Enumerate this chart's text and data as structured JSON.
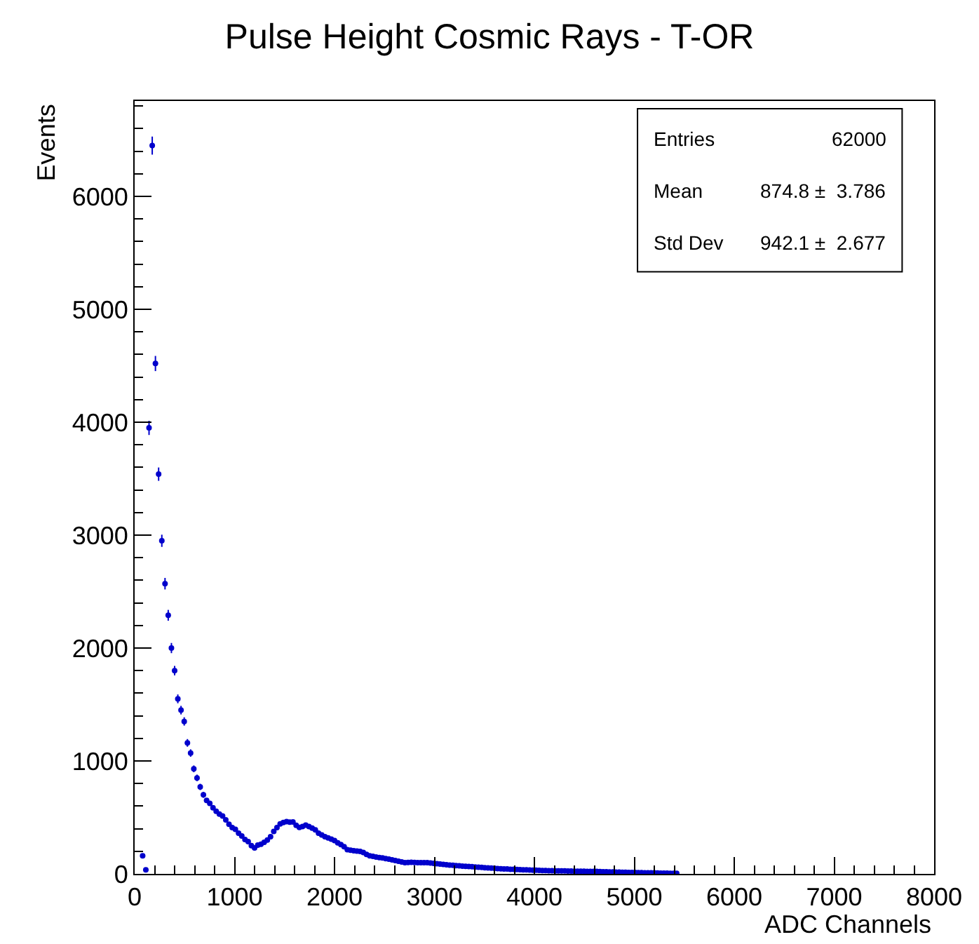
{
  "chart_data": {
    "type": "scatter",
    "title": "Pulse Height Cosmic Rays - T-OR",
    "xlabel": "ADC Channels",
    "ylabel": "Events",
    "x": [
      80,
      112,
      144,
      176,
      208,
      240,
      272,
      304,
      336,
      368,
      400,
      432,
      464,
      496,
      528,
      560,
      592,
      624,
      656,
      688,
      720,
      752,
      784,
      816,
      848,
      880,
      912,
      944,
      976,
      1008,
      1040,
      1072,
      1104,
      1136,
      1168,
      1200,
      1232,
      1264,
      1296,
      1328,
      1360,
      1392,
      1424,
      1456,
      1488,
      1520,
      1552,
      1584,
      1616,
      1648,
      1680,
      1712,
      1744,
      1776,
      1808,
      1840,
      1872,
      1904,
      1936,
      1968,
      2000,
      2032,
      2064,
      2096,
      2128,
      2160,
      2192,
      2224,
      2256,
      2288,
      2320,
      2352,
      2384,
      2416,
      2448,
      2480,
      2512,
      2544,
      2576,
      2608,
      2640,
      2672,
      2704,
      2736,
      2768,
      2800,
      2832,
      2864,
      2896,
      2928,
      2960,
      2992,
      3024,
      3056,
      3088,
      3120,
      3152,
      3184,
      3216,
      3248,
      3280,
      3312,
      3344,
      3376,
      3408,
      3440,
      3472,
      3504,
      3536,
      3568,
      3600,
      3632,
      3664,
      3696,
      3728,
      3760,
      3792,
      3824,
      3856,
      3888,
      3920,
      3952,
      3984,
      4016,
      4048,
      4080,
      4112,
      4144,
      4176,
      4208,
      4240,
      4272,
      4304,
      4336,
      4368,
      4400,
      4432,
      4464,
      4496,
      4528,
      4560,
      4592,
      4624,
      4656,
      4688,
      4720,
      4752,
      4784,
      4816,
      4848,
      4880,
      4912,
      4944,
      4976,
      5008,
      5040,
      5072,
      5104,
      5136,
      5168,
      5200,
      5232,
      5264,
      5296,
      5328,
      5360,
      5392,
      5424
    ],
    "xerrors": [
      16,
      16,
      16,
      16,
      16,
      16,
      16,
      16,
      16,
      16,
      16,
      16,
      16,
      16,
      16,
      16,
      16,
      16,
      16,
      16,
      16,
      16,
      16,
      16,
      16,
      16,
      16,
      16,
      16,
      16,
      16,
      16,
      16,
      16,
      16,
      16,
      16,
      16,
      16,
      16,
      16,
      16,
      16,
      16,
      16,
      16,
      16,
      16,
      16,
      16,
      16,
      16,
      16,
      16,
      16,
      16,
      16,
      16,
      16,
      16,
      16,
      16,
      16,
      16,
      16,
      16,
      16,
      16,
      16,
      16,
      16,
      16,
      16,
      16,
      16,
      16,
      16,
      16,
      16,
      16,
      16,
      16,
      16,
      16,
      16,
      16,
      16,
      16,
      16,
      16,
      16,
      16,
      16,
      16,
      16,
      16,
      16,
      16,
      16,
      16,
      16,
      16,
      16,
      16,
      16,
      16,
      16,
      16,
      16,
      16,
      16,
      16,
      16,
      16,
      16,
      16,
      16,
      16,
      16,
      16,
      16,
      16,
      16,
      16,
      16,
      16,
      16,
      16,
      16,
      16,
      16,
      16,
      16,
      16,
      16,
      16,
      16,
      16,
      16,
      16,
      16,
      16,
      16,
      16,
      16,
      16,
      16,
      16,
      16,
      16,
      16,
      16,
      16,
      16,
      16,
      16,
      16,
      16,
      16,
      16,
      16,
      16,
      16,
      16,
      16,
      16,
      16,
      16
    ],
    "values": [
      160,
      35,
      3950,
      6450,
      4520,
      3540,
      2950,
      2570,
      2290,
      2000,
      1800,
      1550,
      1450,
      1350,
      1160,
      1070,
      930,
      850,
      770,
      700,
      650,
      625,
      585,
      555,
      530,
      513,
      478,
      440,
      410,
      395,
      360,
      335,
      305,
      285,
      250,
      230,
      255,
      262,
      280,
      300,
      330,
      375,
      410,
      443,
      455,
      463,
      458,
      460,
      430,
      412,
      420,
      431,
      420,
      405,
      390,
      360,
      345,
      330,
      318,
      308,
      295,
      275,
      260,
      240,
      215,
      210,
      205,
      202,
      198,
      190,
      172,
      160,
      155,
      149,
      145,
      141,
      135,
      130,
      125,
      118,
      112,
      105,
      99,
      101,
      103,
      101,
      100,
      99,
      99,
      99,
      96,
      93,
      90,
      87,
      84,
      81,
      78,
      76,
      73,
      71,
      69,
      67,
      65,
      63,
      61,
      59,
      57,
      55,
      53,
      51,
      49,
      47,
      45,
      44,
      43,
      41,
      40,
      39,
      38,
      36,
      35,
      34,
      33,
      32,
      31,
      30,
      29,
      28,
      28,
      27,
      27,
      26,
      26,
      25,
      25,
      24,
      24,
      23,
      23,
      22,
      22,
      21,
      21,
      20,
      19,
      18,
      17,
      17,
      16,
      15,
      14,
      14,
      13,
      13,
      12,
      11,
      11,
      10,
      10,
      9,
      9,
      8,
      7,
      6,
      6,
      5,
      5,
      4
    ],
    "errors": [
      null,
      null,
      63,
      80,
      67,
      59,
      54,
      51,
      48,
      45,
      42,
      39,
      38,
      37,
      34,
      33,
      30,
      29,
      28,
      26,
      null,
      null,
      null,
      null,
      null,
      null,
      null,
      null,
      null,
      null,
      null,
      null,
      null,
      null,
      null,
      null,
      null,
      null,
      null,
      null,
      null,
      null,
      null,
      null,
      null,
      null,
      null,
      null,
      null,
      null,
      null,
      null,
      null,
      null,
      null,
      null,
      null,
      null,
      null,
      null,
      null,
      null,
      null,
      null,
      null,
      null,
      null,
      null,
      null,
      null,
      null,
      null,
      null,
      null,
      null,
      null,
      null,
      null,
      null,
      null,
      null,
      null,
      null,
      null,
      null,
      null,
      null,
      null,
      null,
      null,
      null,
      null,
      null,
      null,
      null,
      null,
      null,
      null,
      null,
      null,
      null,
      null,
      null,
      null,
      null,
      null,
      null,
      null,
      null,
      null,
      null,
      null,
      null,
      null,
      null,
      null,
      null,
      null,
      null,
      null,
      null,
      null,
      null,
      null,
      null,
      null,
      null,
      null,
      null,
      null,
      null,
      null,
      null,
      null,
      null,
      null,
      null,
      null,
      null,
      null,
      null,
      null,
      null,
      null,
      null,
      null,
      null,
      null,
      null,
      null,
      null,
      null,
      null,
      null,
      null,
      null,
      null,
      null,
      null,
      null,
      null,
      null,
      null,
      null,
      null,
      null,
      null,
      null
    ],
    "color": "#0000cc",
    "xlim": [
      0,
      8000
    ],
    "xticks": [
      0,
      1000,
      2000,
      3000,
      4000,
      5000,
      6000,
      7000,
      8000
    ],
    "ylim": [
      0,
      6845
    ],
    "yticks": [
      0,
      1000,
      2000,
      3000,
      4000,
      5000,
      6000
    ],
    "annotations": [
      "Entries",
      "62000",
      "Mean",
      "874.8 ±  3.786",
      "Std Dev",
      "942.1 ±  2.677"
    ]
  }
}
